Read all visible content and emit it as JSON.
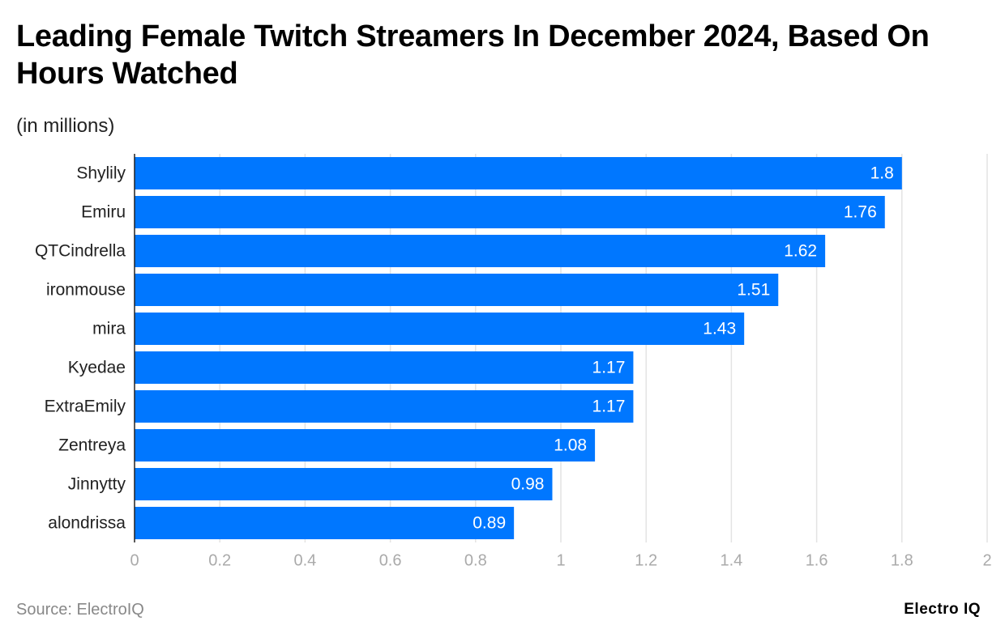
{
  "chart_data": {
    "type": "bar",
    "orientation": "horizontal",
    "title": "Leading Female Twitch Streamers In December 2024, Based On Hours Watched",
    "subtitle": "(in millions)",
    "categories": [
      "Shylily",
      "Emiru",
      "QTCindrella",
      "ironmouse",
      "mira",
      "Kyedae",
      "ExtraEmily",
      "Zentreya",
      "Jinnytty",
      "alondrissa"
    ],
    "values": [
      1.8,
      1.76,
      1.62,
      1.51,
      1.43,
      1.17,
      1.17,
      1.08,
      0.98,
      0.89
    ],
    "color": "#0077ff",
    "xlim": [
      0,
      2
    ],
    "xticks": [
      0,
      0.2,
      0.4,
      0.6,
      0.8,
      1,
      1.2,
      1.4,
      1.6,
      1.8,
      2
    ],
    "grid": true,
    "source": "Source: ElectroIQ",
    "brand": "Electro IQ"
  }
}
